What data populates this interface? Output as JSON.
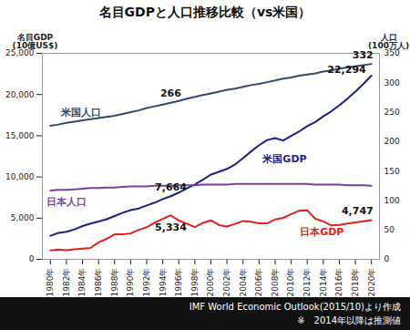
{
  "chart_data": {
    "type": "line",
    "title": "名目GDPと人口推移比較（vs米国）",
    "ylabel": "名目GDP\n(10億US$)",
    "y2label": "人口\n(100万人)",
    "source": "IMF World Economic Outlook(2015/10)より作成",
    "note": "※　2014年以降は推測値",
    "x": [
      1980,
      1981,
      1982,
      1983,
      1984,
      1985,
      1986,
      1987,
      1988,
      1989,
      1990,
      1991,
      1992,
      1993,
      1994,
      1995,
      1996,
      1997,
      1998,
      1999,
      2000,
      2001,
      2002,
      2003,
      2004,
      2005,
      2006,
      2007,
      2008,
      2009,
      2010,
      2011,
      2012,
      2013,
      2014,
      2015,
      2016,
      2017,
      2018,
      2019,
      2020
    ],
    "xlim": [
      1979,
      2021
    ],
    "xticks": [
      {
        "value": 1980,
        "label": "1980年"
      },
      {
        "value": 1982,
        "label": "1982年"
      },
      {
        "value": 1984,
        "label": "1984年"
      },
      {
        "value": 1986,
        "label": "1986年"
      },
      {
        "value": 1988,
        "label": "1988年"
      },
      {
        "value": 1990,
        "label": "1990年"
      },
      {
        "value": 1992,
        "label": "1992年"
      },
      {
        "value": 1994,
        "label": "1994年"
      },
      {
        "value": 1996,
        "label": "1996年"
      },
      {
        "value": 1998,
        "label": "1998年"
      },
      {
        "value": 2000,
        "label": "2000年"
      },
      {
        "value": 2002,
        "label": "2002年"
      },
      {
        "value": 2004,
        "label": "2004年"
      },
      {
        "value": 2006,
        "label": "2006年"
      },
      {
        "value": 2008,
        "label": "2008年"
      },
      {
        "value": 2010,
        "label": "2010年"
      },
      {
        "value": 2012,
        "label": "2012年"
      },
      {
        "value": 2014,
        "label": "2014年"
      },
      {
        "value": 2016,
        "label": "2016年"
      },
      {
        "value": 2018,
        "label": "2018年"
      },
      {
        "value": 2020,
        "label": "2020年"
      }
    ],
    "ylim": [
      0,
      25000
    ],
    "yticks": [
      0,
      {
        "value": 5000,
        "label": "5,000"
      },
      {
        "value": 10000,
        "label": "10,000"
      },
      {
        "value": 15000,
        "label": "15,000"
      },
      {
        "value": 20000,
        "label": "20,000"
      },
      {
        "value": 25000,
        "label": "25,000"
      }
    ],
    "y2lim": [
      0,
      350
    ],
    "y2ticks": [
      0,
      50,
      100,
      150,
      200,
      250,
      300,
      350
    ],
    "grid": false,
    "series": [
      {
        "name": "米国人口",
        "color": "#34496e",
        "axis": "y2",
        "values": [
          227,
          229,
          232,
          234,
          236,
          238,
          240,
          242,
          244,
          247,
          250,
          253,
          257,
          260,
          263,
          266,
          269,
          273,
          276,
          279,
          282,
          285,
          288,
          290,
          293,
          296,
          298,
          301,
          304,
          307,
          309,
          312,
          314,
          316,
          319,
          321,
          324,
          326,
          328,
          330,
          332
        ]
      },
      {
        "name": "米国GDP",
        "color": "#1c1f85",
        "values": [
          2863,
          3211,
          3345,
          3638,
          4041,
          4347,
          4590,
          4870,
          5253,
          5658,
          5980,
          6174,
          6539,
          6879,
          7309,
          7664,
          8100,
          8609,
          9089,
          9661,
          10285,
          10622,
          10978,
          11511,
          12275,
          13094,
          13856,
          14478,
          14719,
          14419,
          14964,
          15518,
          16155,
          16663,
          17348,
          17969,
          18698,
          19485,
          20345,
          21293,
          22294
        ]
      },
      {
        "name": "日本人口",
        "color": "#7b3fa0",
        "axis": "y2",
        "values": [
          117,
          118,
          118,
          119,
          120,
          121,
          121,
          122,
          122,
          123,
          124,
          124,
          124,
          125,
          125,
          125,
          126,
          126,
          126,
          127,
          127,
          127,
          127,
          128,
          128,
          128,
          128,
          128,
          128,
          128,
          128,
          128,
          128,
          127,
          127,
          127,
          127,
          126,
          126,
          126,
          125
        ]
      },
      {
        "name": "日本GDP",
        "color": "#e0201b",
        "values": [
          1087,
          1201,
          1117,
          1218,
          1295,
          1385,
          2053,
          2487,
          3031,
          3053,
          3139,
          3579,
          3893,
          4454,
          4907,
          5334,
          4706,
          4324,
          3915,
          4433,
          4731,
          4160,
          3981,
          4303,
          4656,
          4572,
          4357,
          4356,
          4849,
          5035,
          5495,
          5906,
          5954,
          4920,
          4602,
          4116,
          4187,
          4348,
          4487,
          4608,
          4747
        ]
      }
    ],
    "annotations": [
      {
        "text": "266",
        "series": "米国人口",
        "x": 1995
      },
      {
        "text": "332",
        "series": "米国人口",
        "x": 2020
      },
      {
        "text": "22,294",
        "series": "米国GDP",
        "x": 2020
      },
      {
        "text": "7,664",
        "series": "米国GDP",
        "x": 1995
      },
      {
        "text": "5,334",
        "series": "日本GDP",
        "x": 1995
      },
      {
        "text": "4,747",
        "series": "日本GDP",
        "x": 2020
      }
    ]
  }
}
